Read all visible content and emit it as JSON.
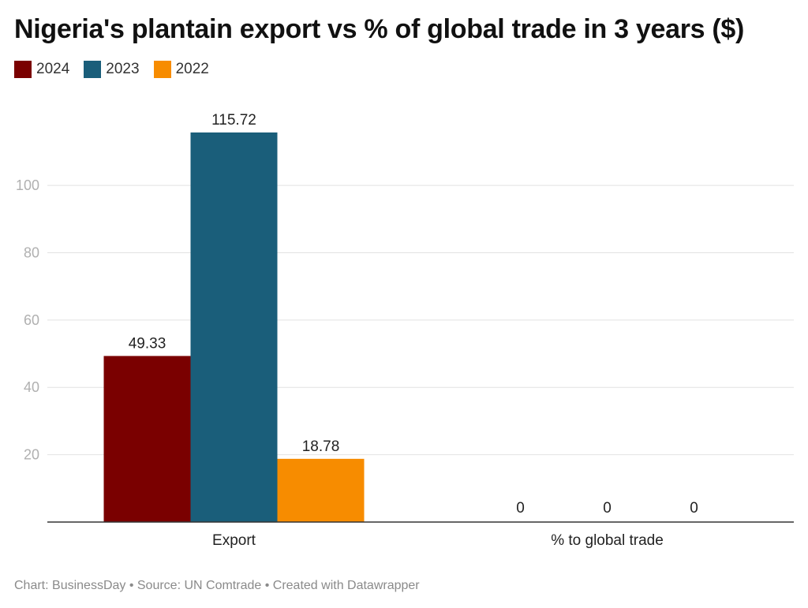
{
  "chart_data": {
    "type": "bar",
    "title": "Nigeria's plantain export vs % of global trade in 3 years ($)",
    "categories": [
      "Export",
      "% to global trade"
    ],
    "series": [
      {
        "name": "2024",
        "color": "#7a0000",
        "values": [
          49.33,
          0
        ]
      },
      {
        "name": "2023",
        "color": "#1a5e7a",
        "values": [
          115.72,
          0
        ]
      },
      {
        "name": "2022",
        "color": "#f78c00",
        "values": [
          18.78,
          0
        ]
      }
    ],
    "data_labels": [
      [
        "49.33",
        "0"
      ],
      [
        "115.72",
        "0"
      ],
      [
        "18.78",
        "0"
      ]
    ],
    "yticks": [
      20,
      40,
      60,
      80,
      100
    ],
    "ytick_labels": [
      "20",
      "40",
      "60",
      "80",
      "100"
    ],
    "ylim": [
      0,
      115.72
    ],
    "grid": true,
    "legend_position": "top-left"
  },
  "footer": {
    "text": "Chart: BusinessDay • Source: UN Comtrade • Created with Datawrapper"
  }
}
